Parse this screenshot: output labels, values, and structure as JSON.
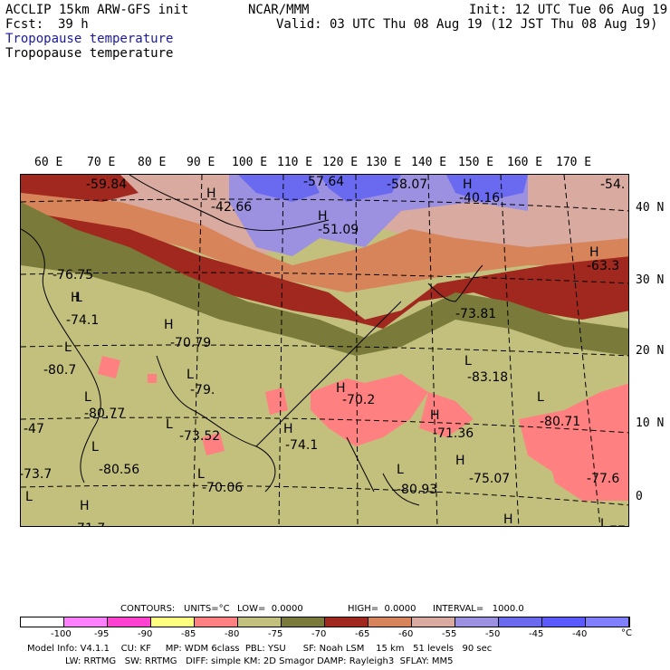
{
  "header": {
    "model": "ACCLIP 15km ARW-GFS init",
    "org": "NCAR/MMM",
    "init": "Init: 12 UTC Tue 06 Aug 19",
    "fcst_label": "Fcst:",
    "fcst_value": "39 h",
    "valid": "Valid: 03 UTC Thu 08 Aug 19 (12 JST Thu 08 Aug 19)",
    "field_blue": "Tropopause temperature",
    "field_black": "Tropopause temperature"
  },
  "axes": {
    "lon_labels": [
      "60 E",
      "70 E",
      "80 E",
      "90 E",
      "100 E",
      "110 E",
      "120 E",
      "130 E",
      "140 E",
      "150 E",
      "160 E",
      "170 E"
    ],
    "lat_labels": [
      "40 N",
      "30 N",
      "20 N",
      "10 N",
      "0"
    ]
  },
  "map_labels": {
    "H": [
      "H",
      "H",
      "H",
      "H",
      "H",
      "H",
      "H",
      "H",
      "H",
      "H",
      "H",
      "H"
    ],
    "L": [
      "L",
      "L",
      "L",
      "L",
      "L",
      "L",
      "L",
      "L",
      "L",
      "L",
      "L",
      "L"
    ],
    "values": [
      "-59.84",
      "-42.66",
      "-57.64",
      "-58.07",
      "-40.16",
      "-54.",
      "-51.09",
      "-63.3",
      "-76.75",
      "-74.1",
      "-70.79",
      "-73.81",
      "-80.7",
      "-79.",
      "-83.18",
      "-70.2",
      "-80.77",
      "-80.71",
      "-47",
      "-73.52",
      "-74.1",
      "-71.36",
      "-77.6",
      "-73.7",
      "-80.56",
      "-75.07",
      "-80.93",
      "-70.06",
      "-71.7",
      "-77"
    ]
  },
  "contours_line": {
    "contours": "CONTOURS:",
    "units": "UNITS=°C",
    "low": "LOW=  0.0000",
    "high": "HIGH=  0.0000",
    "interval": "INTERVAL=   1000.0"
  },
  "colorbar": {
    "colors": [
      "#ffffff",
      "#ff80ff",
      "#ff40d0",
      "#ffff80",
      "#ff8080",
      "#c3c07e",
      "#7a7a3a",
      "#a0281e",
      "#d8845a",
      "#d8aaa0",
      "#9c90e0",
      "#6a6af0",
      "#5a5aff",
      "#8080ff"
    ],
    "labels": [
      "-100",
      "-95",
      "-90",
      "-85",
      "-80",
      "-75",
      "-70",
      "-65",
      "-60",
      "-55",
      "-50",
      "-45",
      "-40",
      "°C"
    ]
  },
  "footer": {
    "line1": "Model Info: V4.1.1    CU: KF     MP: WDM 6class  PBL: YSU      SF: Noah LSM    15 km   51 levels   90 sec",
    "line2": "LW: RRTMG   SW: RRTMG   DIFF: simple KM: 2D Smagor DAMP: Rayleigh3  SFLAY: MM5"
  }
}
